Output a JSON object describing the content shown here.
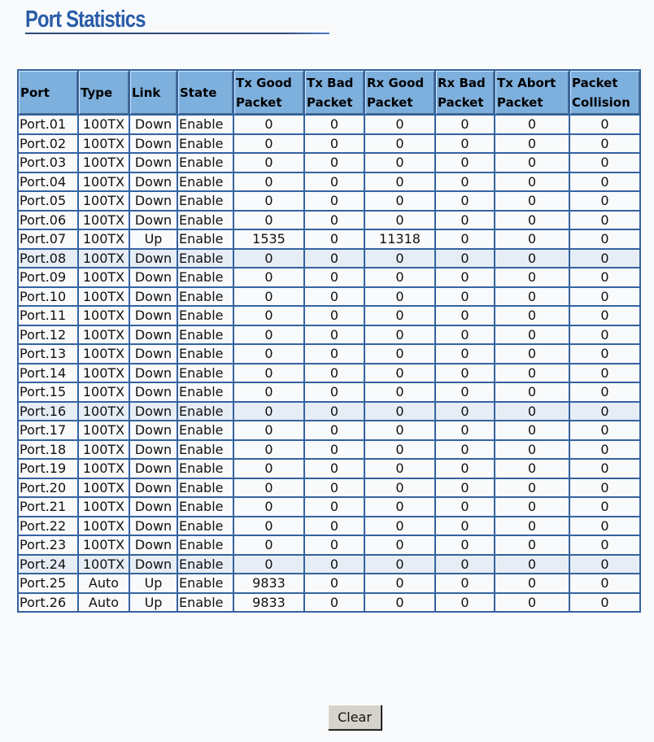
{
  "page": {
    "title": "Port Statistics"
  },
  "table": {
    "headers": [
      "Port",
      "Type",
      "Link",
      "State",
      "Tx Good Packet",
      "Tx Bad Packet",
      "Rx Good Packet",
      "Rx Bad Packet",
      "Tx Abort Packet",
      "Packet Collision"
    ],
    "rows": [
      [
        "Port.01",
        "100TX",
        "Down",
        "Enable",
        "0",
        "0",
        "0",
        "0",
        "0",
        "0"
      ],
      [
        "Port.02",
        "100TX",
        "Down",
        "Enable",
        "0",
        "0",
        "0",
        "0",
        "0",
        "0"
      ],
      [
        "Port.03",
        "100TX",
        "Down",
        "Enable",
        "0",
        "0",
        "0",
        "0",
        "0",
        "0"
      ],
      [
        "Port.04",
        "100TX",
        "Down",
        "Enable",
        "0",
        "0",
        "0",
        "0",
        "0",
        "0"
      ],
      [
        "Port.05",
        "100TX",
        "Down",
        "Enable",
        "0",
        "0",
        "0",
        "0",
        "0",
        "0"
      ],
      [
        "Port.06",
        "100TX",
        "Down",
        "Enable",
        "0",
        "0",
        "0",
        "0",
        "0",
        "0"
      ],
      [
        "Port.07",
        "100TX",
        "Up",
        "Enable",
        "1535",
        "0",
        "11318",
        "0",
        "0",
        "0"
      ],
      [
        "Port.08",
        "100TX",
        "Down",
        "Enable",
        "0",
        "0",
        "0",
        "0",
        "0",
        "0"
      ],
      [
        "Port.09",
        "100TX",
        "Down",
        "Enable",
        "0",
        "0",
        "0",
        "0",
        "0",
        "0"
      ],
      [
        "Port.10",
        "100TX",
        "Down",
        "Enable",
        "0",
        "0",
        "0",
        "0",
        "0",
        "0"
      ],
      [
        "Port.11",
        "100TX",
        "Down",
        "Enable",
        "0",
        "0",
        "0",
        "0",
        "0",
        "0"
      ],
      [
        "Port.12",
        "100TX",
        "Down",
        "Enable",
        "0",
        "0",
        "0",
        "0",
        "0",
        "0"
      ],
      [
        "Port.13",
        "100TX",
        "Down",
        "Enable",
        "0",
        "0",
        "0",
        "0",
        "0",
        "0"
      ],
      [
        "Port.14",
        "100TX",
        "Down",
        "Enable",
        "0",
        "0",
        "0",
        "0",
        "0",
        "0"
      ],
      [
        "Port.15",
        "100TX",
        "Down",
        "Enable",
        "0",
        "0",
        "0",
        "0",
        "0",
        "0"
      ],
      [
        "Port.16",
        "100TX",
        "Down",
        "Enable",
        "0",
        "0",
        "0",
        "0",
        "0",
        "0"
      ],
      [
        "Port.17",
        "100TX",
        "Down",
        "Enable",
        "0",
        "0",
        "0",
        "0",
        "0",
        "0"
      ],
      [
        "Port.18",
        "100TX",
        "Down",
        "Enable",
        "0",
        "0",
        "0",
        "0",
        "0",
        "0"
      ],
      [
        "Port.19",
        "100TX",
        "Down",
        "Enable",
        "0",
        "0",
        "0",
        "0",
        "0",
        "0"
      ],
      [
        "Port.20",
        "100TX",
        "Down",
        "Enable",
        "0",
        "0",
        "0",
        "0",
        "0",
        "0"
      ],
      [
        "Port.21",
        "100TX",
        "Down",
        "Enable",
        "0",
        "0",
        "0",
        "0",
        "0",
        "0"
      ],
      [
        "Port.22",
        "100TX",
        "Down",
        "Enable",
        "0",
        "0",
        "0",
        "0",
        "0",
        "0"
      ],
      [
        "Port.23",
        "100TX",
        "Down",
        "Enable",
        "0",
        "0",
        "0",
        "0",
        "0",
        "0"
      ],
      [
        "Port.24",
        "100TX",
        "Down",
        "Enable",
        "0",
        "0",
        "0",
        "0",
        "0",
        "0"
      ],
      [
        "Port.25",
        "Auto",
        "Up",
        "Enable",
        "9833",
        "0",
        "0",
        "0",
        "0",
        "0"
      ],
      [
        "Port.26",
        "Auto",
        "Up",
        "Enable",
        "9833",
        "0",
        "0",
        "0",
        "0",
        "0"
      ]
    ],
    "highlighted_rows": [
      "Port.08",
      "Port.16",
      "Port.24"
    ]
  },
  "buttons": {
    "clear": "Clear"
  },
  "colors": {
    "header_bg": "#7eb0de",
    "border": "#3463a0",
    "title": "#2a5ca8",
    "highlight_row": "#e6edf5"
  }
}
